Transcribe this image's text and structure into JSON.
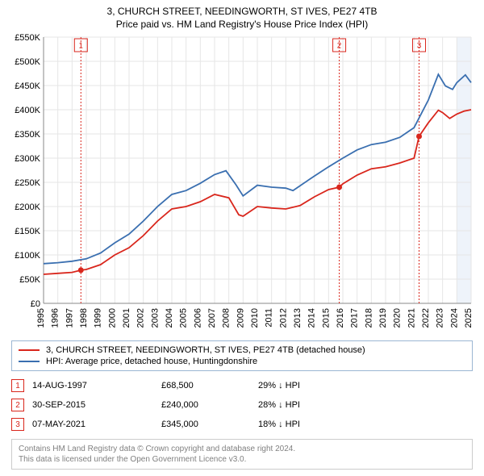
{
  "title": {
    "line1": "3, CHURCH STREET, NEEDINGWORTH, ST IVES, PE27 4TB",
    "line2": "Price paid vs. HM Land Registry's House Price Index (HPI)"
  },
  "chart": {
    "type": "line",
    "background_color": "#ffffff",
    "plot_background_color": "#ffffff",
    "grid_color": "#e6e6e6",
    "axis_color": "#888888",
    "x": {
      "min": 1995,
      "max": 2025,
      "ticks": [
        1995,
        1996,
        1997,
        1998,
        1999,
        2000,
        2001,
        2002,
        2003,
        2004,
        2005,
        2006,
        2007,
        2008,
        2009,
        2010,
        2011,
        2012,
        2013,
        2014,
        2015,
        2016,
        2017,
        2018,
        2019,
        2020,
        2021,
        2022,
        2023,
        2024,
        2025
      ],
      "label_rotation": -90
    },
    "y": {
      "min": 0,
      "max": 550000,
      "ticks": [
        0,
        50000,
        100000,
        150000,
        200000,
        250000,
        300000,
        350000,
        400000,
        450000,
        500000,
        550000
      ],
      "tick_labels": [
        "£0",
        "£50K",
        "£100K",
        "£150K",
        "£200K",
        "£250K",
        "£300K",
        "£350K",
        "£400K",
        "£450K",
        "£500K",
        "£550K"
      ]
    },
    "forecast_band": {
      "from_year": 2024.0,
      "color": "#eef3fa"
    },
    "series": [
      {
        "id": "price_paid",
        "color": "#d9261c",
        "points": [
          [
            1995.0,
            60000
          ],
          [
            1996.0,
            62000
          ],
          [
            1997.0,
            64000
          ],
          [
            1997.62,
            68500
          ],
          [
            1998.0,
            70000
          ],
          [
            1999.0,
            80000
          ],
          [
            2000.0,
            100000
          ],
          [
            2001.0,
            115000
          ],
          [
            2002.0,
            140000
          ],
          [
            2003.0,
            170000
          ],
          [
            2004.0,
            195000
          ],
          [
            2005.0,
            200000
          ],
          [
            2006.0,
            210000
          ],
          [
            2007.0,
            225000
          ],
          [
            2008.0,
            218000
          ],
          [
            2008.7,
            183000
          ],
          [
            2009.0,
            180000
          ],
          [
            2010.0,
            200000
          ],
          [
            2011.0,
            197000
          ],
          [
            2012.0,
            195000
          ],
          [
            2013.0,
            202000
          ],
          [
            2014.0,
            220000
          ],
          [
            2015.0,
            235000
          ],
          [
            2015.75,
            240000
          ],
          [
            2016.0,
            247000
          ],
          [
            2017.0,
            265000
          ],
          [
            2018.0,
            278000
          ],
          [
            2019.0,
            282000
          ],
          [
            2020.0,
            290000
          ],
          [
            2021.0,
            300000
          ],
          [
            2021.35,
            345000
          ],
          [
            2022.0,
            373000
          ],
          [
            2022.7,
            399000
          ],
          [
            2023.0,
            394000
          ],
          [
            2023.5,
            382000
          ],
          [
            2024.0,
            391000
          ],
          [
            2024.5,
            397000
          ],
          [
            2025.0,
            400000
          ]
        ]
      },
      {
        "id": "hpi",
        "color": "#3a6fb0",
        "points": [
          [
            1995.0,
            82000
          ],
          [
            1996.0,
            84000
          ],
          [
            1997.0,
            87000
          ],
          [
            1998.0,
            92000
          ],
          [
            1999.0,
            104000
          ],
          [
            2000.0,
            125000
          ],
          [
            2001.0,
            143000
          ],
          [
            2002.0,
            170000
          ],
          [
            2003.0,
            200000
          ],
          [
            2004.0,
            225000
          ],
          [
            2005.0,
            233000
          ],
          [
            2006.0,
            248000
          ],
          [
            2007.0,
            266000
          ],
          [
            2007.8,
            274000
          ],
          [
            2008.5,
            245000
          ],
          [
            2009.0,
            222000
          ],
          [
            2010.0,
            244000
          ],
          [
            2011.0,
            240000
          ],
          [
            2012.0,
            238000
          ],
          [
            2012.5,
            233000
          ],
          [
            2013.0,
            243000
          ],
          [
            2014.0,
            263000
          ],
          [
            2015.0,
            282000
          ],
          [
            2016.0,
            300000
          ],
          [
            2017.0,
            317000
          ],
          [
            2018.0,
            328000
          ],
          [
            2019.0,
            333000
          ],
          [
            2020.0,
            343000
          ],
          [
            2021.0,
            363000
          ],
          [
            2022.0,
            420000
          ],
          [
            2022.7,
            473000
          ],
          [
            2023.2,
            449000
          ],
          [
            2023.7,
            442000
          ],
          [
            2024.0,
            456000
          ],
          [
            2024.6,
            472000
          ],
          [
            2025.0,
            456000
          ]
        ]
      }
    ],
    "event_markers": [
      {
        "n": "1",
        "year": 1997.62,
        "value": 68500,
        "box_color": "#d9261c",
        "line_color": "#d9261c",
        "dot_color": "#d9261c"
      },
      {
        "n": "2",
        "year": 2015.75,
        "value": 240000,
        "box_color": "#d9261c",
        "line_color": "#d9261c",
        "dot_color": "#d9261c"
      },
      {
        "n": "3",
        "year": 2021.35,
        "value": 345000,
        "box_color": "#d9261c",
        "line_color": "#d9261c",
        "dot_color": "#d9261c"
      }
    ]
  },
  "legend": {
    "border_color": "#9bb6d3",
    "items": [
      {
        "color": "#d9261c",
        "label": "3, CHURCH STREET, NEEDINGWORTH, ST IVES, PE27 4TB (detached house)"
      },
      {
        "color": "#3a6fb0",
        "label": "HPI: Average price, detached house, Huntingdonshire"
      }
    ]
  },
  "marker_rows": [
    {
      "n": "1",
      "date": "14-AUG-1997",
      "price": "£68,500",
      "delta": "29% ↓ HPI",
      "border_color": "#d9261c"
    },
    {
      "n": "2",
      "date": "30-SEP-2015",
      "price": "£240,000",
      "delta": "28% ↓ HPI",
      "border_color": "#d9261c"
    },
    {
      "n": "3",
      "date": "07-MAY-2021",
      "price": "£345,000",
      "delta": "18% ↓ HPI",
      "border_color": "#d9261c"
    }
  ],
  "attribution": {
    "border_color": "#cccccc",
    "text_color": "#808080",
    "line1": "Contains HM Land Registry data © Crown copyright and database right 2024.",
    "line2": "This data is licensed under the Open Government Licence v3.0."
  }
}
